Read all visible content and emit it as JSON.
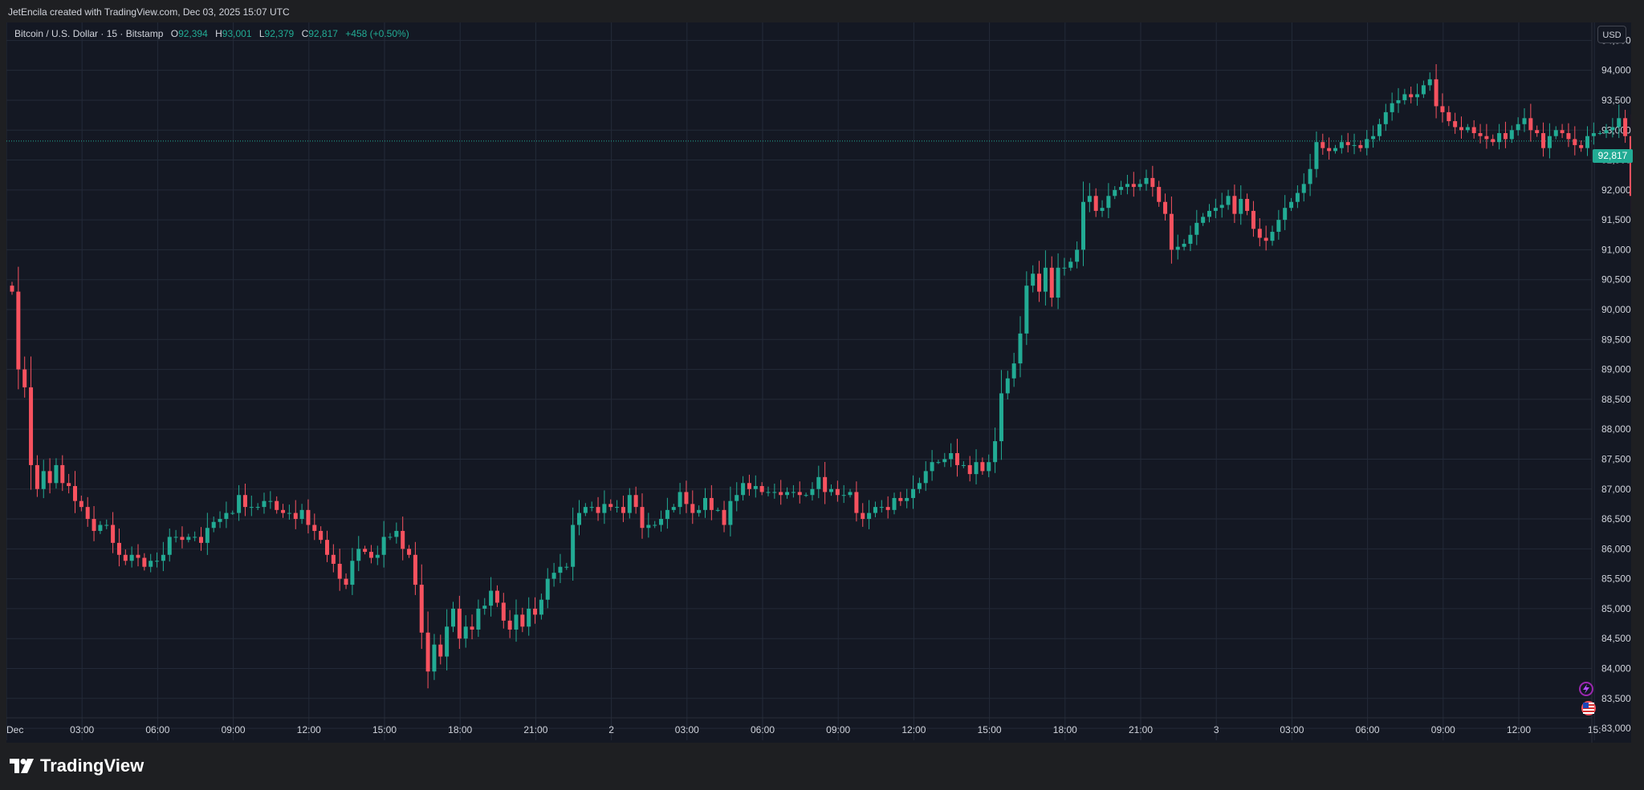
{
  "header": {
    "caption": "JetEncila created with TradingView.com, Dec 03, 2025 15:07 UTC"
  },
  "legend": {
    "symbol": "Bitcoin / U.S. Dollar · 15 · Bitstamp",
    "open_label": "O",
    "open": "92,394",
    "high_label": "H",
    "high": "93,001",
    "low_label": "L",
    "low": "92,379",
    "close_label": "C",
    "close": "92,817",
    "change": "+458 (+0.50%)"
  },
  "price_scale": {
    "currency": "USD",
    "last_price_label": "92,817"
  },
  "footer": {
    "brand": "TradingView",
    "icons": [
      "tradingview-logo-icon",
      "lightning-icon",
      "us-flag-icon"
    ]
  },
  "colors": {
    "up": "#22ab94",
    "down": "#f7525f",
    "background": "#141823",
    "grid": "#232a38"
  },
  "chart_data": {
    "type": "candlestick",
    "title": "Bitcoin / U.S. Dollar · 15 · Bitstamp",
    "interval": "15",
    "ylim": [
      82800,
      94800
    ],
    "y_ticks": [
      "83,000",
      "83,500",
      "84,000",
      "84,500",
      "85,000",
      "85,500",
      "86,000",
      "86,500",
      "87,000",
      "87,500",
      "88,000",
      "88,500",
      "89,000",
      "89,500",
      "90,000",
      "90,500",
      "91,000",
      "91,500",
      "92,000",
      "92,500",
      "93,000",
      "93,500",
      "94,000",
      "94,500"
    ],
    "x_ticks": [
      "Dec",
      "03:00",
      "06:00",
      "09:00",
      "12:00",
      "15:00",
      "18:00",
      "21:00",
      "2",
      "03:00",
      "06:00",
      "09:00",
      "12:00",
      "15:00",
      "18:00",
      "21:00",
      "3",
      "03:00",
      "06:00",
      "09:00",
      "12:00",
      "15:"
    ],
    "grid": true,
    "last_price": 92817,
    "closes": [
      90300,
      89000,
      88700,
      87400,
      87000,
      87300,
      87100,
      87400,
      87100,
      87050,
      86800,
      86700,
      86500,
      86300,
      86400,
      86400,
      86100,
      85900,
      85800,
      85900,
      85850,
      85700,
      85800,
      85800,
      85900,
      86200,
      86200,
      86150,
      86200,
      86200,
      86100,
      86350,
      86450,
      86500,
      86600,
      86600,
      86900,
      86700,
      86700,
      86700,
      86800,
      86800,
      86650,
      86600,
      86600,
      86500,
      86650,
      86400,
      86300,
      86150,
      85900,
      85750,
      85500,
      85400,
      85800,
      86000,
      85950,
      85850,
      85900,
      86200,
      86200,
      86300,
      86000,
      85900,
      85400,
      84600,
      83950,
      84400,
      84200,
      84700,
      85000,
      84500,
      84700,
      84650,
      85000,
      85050,
      85300,
      85100,
      84800,
      84650,
      84900,
      84700,
      85000,
      84900,
      85150,
      85500,
      85600,
      85700,
      85700,
      86400,
      86600,
      86700,
      86700,
      86600,
      86750,
      86700,
      86700,
      86600,
      86900,
      86700,
      86350,
      86400,
      86400,
      86500,
      86650,
      86700,
      86950,
      86750,
      86600,
      86650,
      86850,
      86650,
      86650,
      86400,
      86800,
      86900,
      87100,
      87000,
      87050,
      86950,
      86950,
      86950,
      86900,
      86950,
      86950,
      86900,
      86900,
      87000,
      87200,
      86950,
      87000,
      86900,
      86900,
      86950,
      86600,
      86500,
      86600,
      86700,
      86700,
      86650,
      86850,
      86800,
      86850,
      87000,
      87100,
      87300,
      87450,
      87450,
      87500,
      87600,
      87400,
      87400,
      87250,
      87450,
      87300,
      87450,
      87800,
      88600,
      88850,
      89100,
      89600,
      90400,
      90600,
      90300,
      90700,
      90200,
      90700,
      90700,
      90800,
      91000,
      91800,
      91900,
      91650,
      91700,
      91900,
      92000,
      92050,
      92100,
      92050,
      92100,
      92200,
      92050,
      91800,
      91600,
      91000,
      91050,
      91100,
      91250,
      91450,
      91550,
      91650,
      91700,
      91750,
      91900,
      91600,
      91850,
      91650,
      91350,
      91200,
      91150,
      91300,
      91500,
      91700,
      91800,
      91950,
      92100,
      92350,
      92800,
      92700,
      92650,
      92700,
      92800,
      92750,
      92750,
      92700,
      92850,
      92900,
      93100,
      93300,
      93450,
      93500,
      93600,
      93550,
      93600,
      93750,
      93850,
      93400,
      93300,
      93150,
      93050,
      93000,
      93050,
      92950,
      92900,
      92850,
      92800,
      92950,
      92850,
      93000,
      93100,
      93200,
      93000,
      92950,
      92700,
      92900,
      93000,
      92950,
      92850,
      92750,
      92700,
      92900,
      92950,
      92950,
      93000,
      93050,
      93200,
      92900,
      91900,
      92850,
      93500,
      92350,
      92817
    ]
  }
}
